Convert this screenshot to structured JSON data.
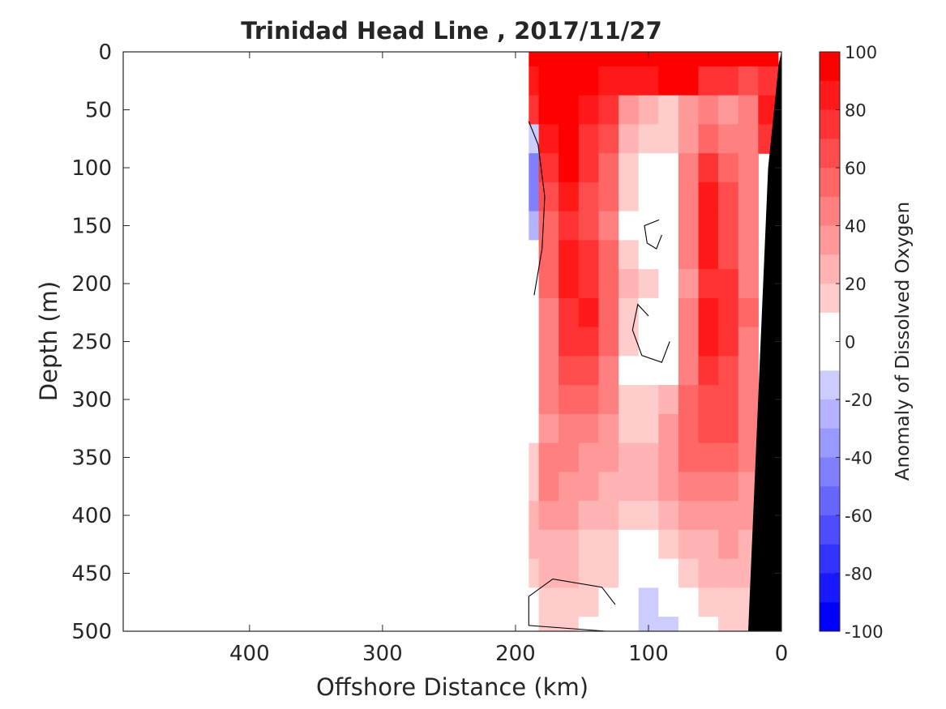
{
  "chart_data": {
    "type": "heatmap",
    "title": "Trinidad Head Line , 2017/11/27",
    "xlabel": "Offshore Distance (km)",
    "ylabel": "Depth (m)",
    "colorbar_label": "Anomaly of Dissolved Oxygen",
    "x_reversed": true,
    "y_reversed": true,
    "xlim": [
      0,
      495
    ],
    "ylim": [
      0,
      500
    ],
    "clim": [
      -100,
      100
    ],
    "x_ticks": [
      400,
      300,
      200,
      100,
      0
    ],
    "y_ticks": [
      0,
      50,
      100,
      150,
      200,
      250,
      300,
      350,
      400,
      450,
      500
    ],
    "colorbar_ticks": [
      100,
      80,
      60,
      40,
      20,
      0,
      -20,
      -40,
      -60,
      -80,
      -100
    ],
    "grid": false,
    "colors": {
      "positive": "#ff0000",
      "negative": "#0000ff",
      "land_mask": "#000000",
      "contour_line": "#000000"
    },
    "x": [
      190,
      175,
      160,
      145,
      130,
      115,
      100,
      85,
      70,
      55,
      40,
      25,
      10
    ],
    "y": [
      0,
      25,
      50,
      75,
      100,
      125,
      150,
      175,
      200,
      225,
      250,
      275,
      300,
      325,
      350,
      375,
      400,
      425,
      450,
      475,
      500
    ],
    "z": [
      [
        92,
        95,
        95,
        93,
        93,
        95,
        100,
        100,
        100,
        96,
        92,
        90,
        90
      ],
      [
        88,
        92,
        95,
        90,
        86,
        80,
        82,
        92,
        90,
        72,
        70,
        68,
        70
      ],
      [
        75,
        98,
        90,
        80,
        70,
        35,
        22,
        18,
        30,
        48,
        35,
        45,
        80
      ],
      [
        -15,
        82,
        96,
        78,
        60,
        20,
        12,
        12,
        30,
        55,
        45,
        40,
        75
      ],
      [
        -45,
        70,
        95,
        70,
        55,
        12,
        6,
        8,
        40,
        75,
        55,
        40,
        null
      ],
      [
        -40,
        62,
        88,
        66,
        50,
        10,
        -4,
        2,
        48,
        85,
        62,
        42,
        null
      ],
      [
        -20,
        58,
        78,
        64,
        48,
        8,
        -6,
        -2,
        44,
        88,
        66,
        44,
        null
      ],
      [
        -5,
        56,
        80,
        70,
        52,
        14,
        6,
        2,
        40,
        82,
        64,
        42,
        null
      ],
      [
        -2,
        52,
        80,
        76,
        56,
        20,
        12,
        6,
        34,
        70,
        72,
        48,
        null
      ],
      [
        2,
        48,
        78,
        80,
        54,
        14,
        6,
        4,
        40,
        80,
        78,
        50,
        null
      ],
      [
        -1,
        44,
        70,
        76,
        50,
        10,
        -6,
        6,
        46,
        84,
        72,
        46,
        null
      ],
      [
        -2,
        42,
        62,
        64,
        44,
        8,
        -8,
        8,
        48,
        72,
        60,
        42,
        null
      ],
      [
        1,
        40,
        56,
        52,
        40,
        12,
        12,
        24,
        52,
        68,
        62,
        40,
        null
      ],
      [
        4,
        38,
        46,
        42,
        36,
        18,
        18,
        30,
        54,
        64,
        60,
        40,
        null
      ],
      [
        10,
        40,
        42,
        36,
        32,
        24,
        22,
        32,
        50,
        58,
        55,
        40,
        null
      ],
      [
        14,
        48,
        36,
        30,
        28,
        20,
        24,
        30,
        42,
        46,
        44,
        38,
        null
      ],
      [
        22,
        34,
        30,
        24,
        20,
        14,
        12,
        22,
        30,
        34,
        36,
        32,
        null
      ],
      [
        20,
        26,
        24,
        18,
        14,
        8,
        6,
        14,
        22,
        28,
        32,
        28,
        null
      ],
      [
        16,
        24,
        20,
        14,
        10,
        4,
        2,
        8,
        16,
        22,
        24,
        20,
        null
      ],
      [
        6,
        18,
        14,
        12,
        6,
        -4,
        -10,
        -8,
        4,
        14,
        18,
        16,
        null
      ],
      [
        -6,
        10,
        12,
        8,
        2,
        -8,
        -12,
        -10,
        -2,
        8,
        12,
        12,
        null
      ]
    ]
  }
}
